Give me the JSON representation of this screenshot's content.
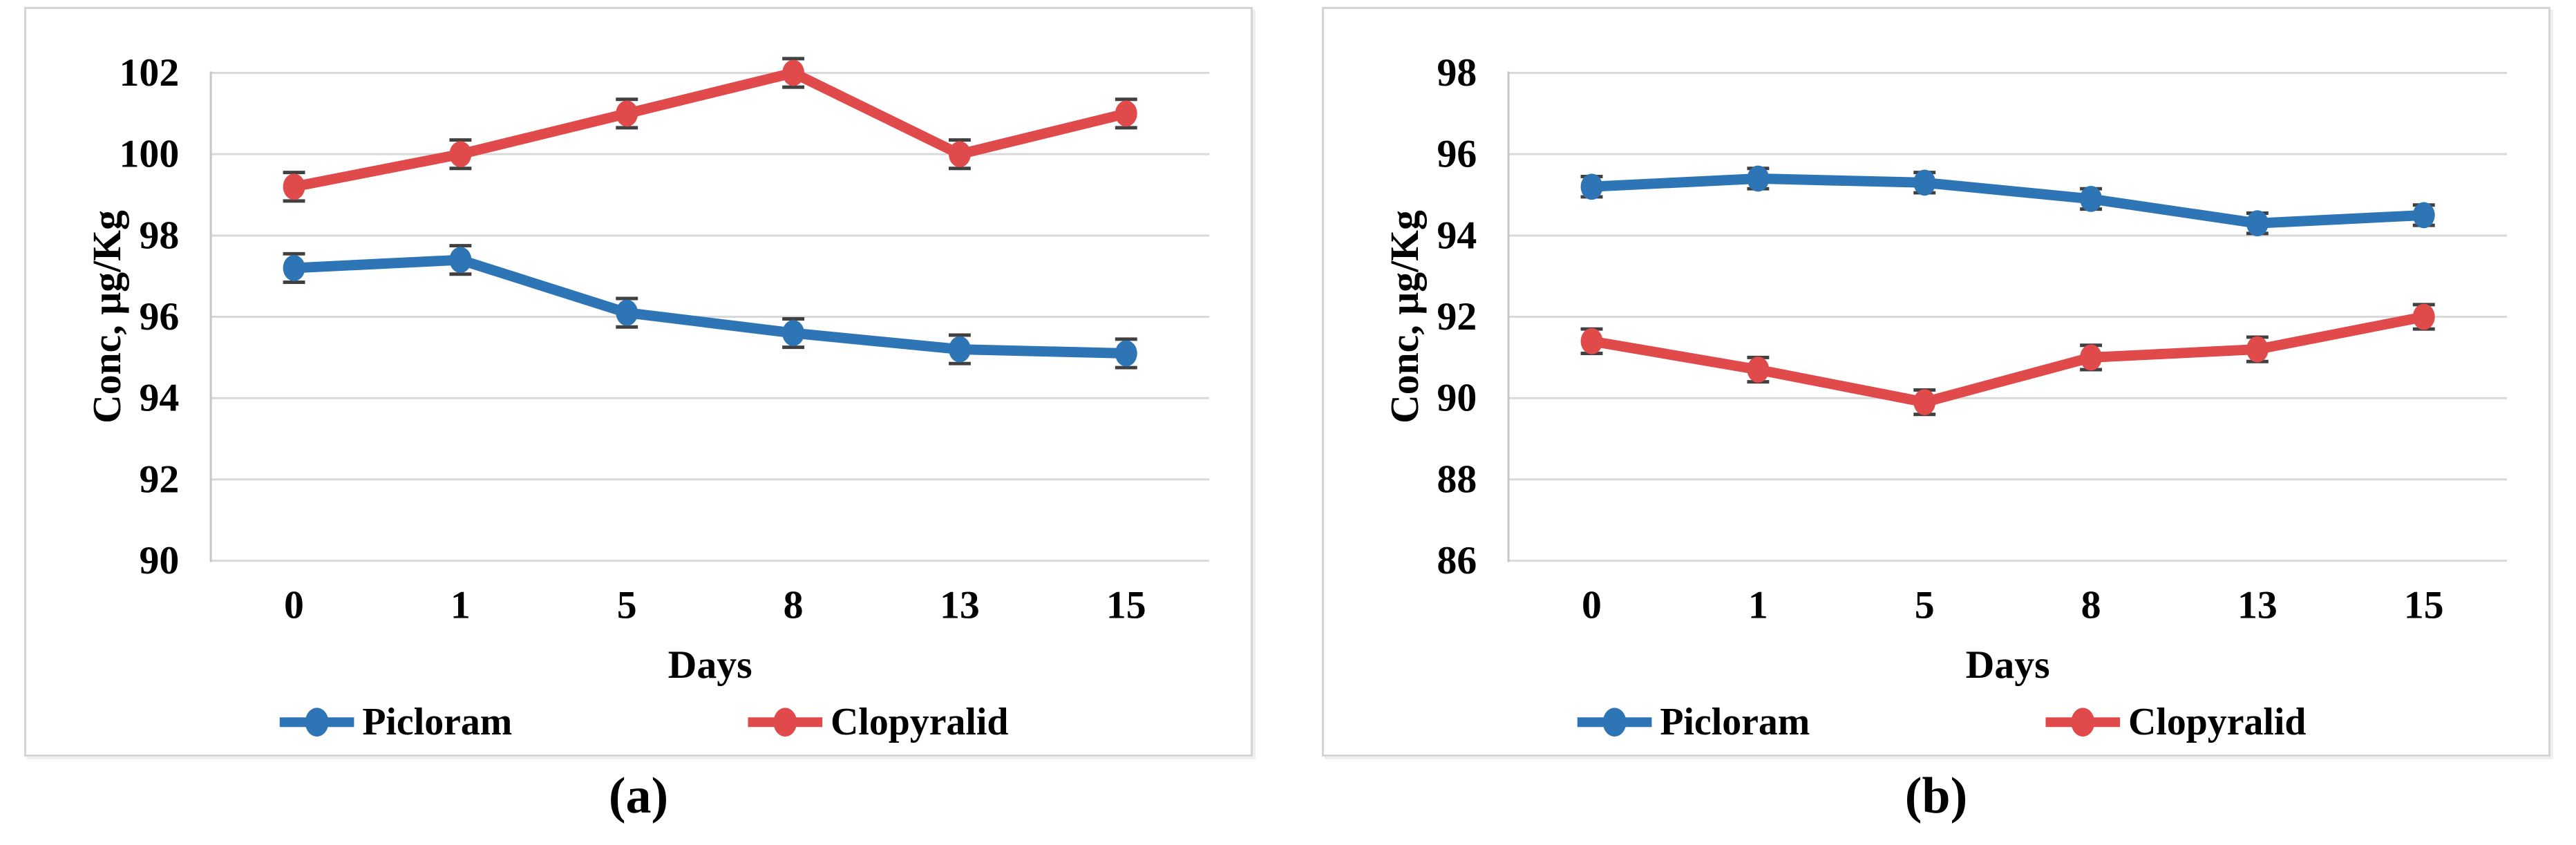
{
  "style": {
    "background": "#ffffff",
    "panel_border": "#d5d5d5",
    "gridline": "#d9d9d9",
    "axis_line": "#c6c6c6",
    "error_bar": "#404040",
    "text": "#000000",
    "picloram_color": "#2E75B6",
    "clopyralid_color": "#E04A4A"
  },
  "chart_data": [
    {
      "id": "a",
      "type": "line",
      "caption": "(a)",
      "title": "",
      "xlabel": "Days",
      "ylabel": "Conc, µg/Kg",
      "categories": [
        "0",
        "1",
        "5",
        "8",
        "13",
        "15"
      ],
      "ylim": [
        90,
        102
      ],
      "yticks": [
        90,
        92,
        94,
        96,
        98,
        100,
        102
      ],
      "grid": "horizontal",
      "legend_position": "bottom",
      "markers": true,
      "error_bars": true,
      "series": [
        {
          "name": "Picloram",
          "color": "#2E75B6",
          "values": [
            97.2,
            97.4,
            96.1,
            95.6,
            95.2,
            95.1
          ],
          "error": 0.35
        },
        {
          "name": "Clopyralid",
          "color": "#E04A4A",
          "values": [
            99.2,
            100.0,
            101.0,
            102.0,
            100.0,
            101.0
          ],
          "error": 0.35
        }
      ]
    },
    {
      "id": "b",
      "type": "line",
      "caption": "(b)",
      "title": "",
      "xlabel": "Days",
      "ylabel": "Conc, µg/Kg",
      "categories": [
        "0",
        "1",
        "5",
        "8",
        "13",
        "15"
      ],
      "ylim": [
        86,
        98
      ],
      "yticks": [
        86,
        88,
        90,
        92,
        94,
        96,
        98
      ],
      "grid": "horizontal",
      "legend_position": "bottom",
      "markers": true,
      "error_bars": true,
      "series": [
        {
          "name": "Picloram",
          "color": "#2E75B6",
          "values": [
            95.2,
            95.4,
            95.3,
            94.9,
            94.3,
            94.5
          ],
          "error": 0.25
        },
        {
          "name": "Clopyralid",
          "color": "#E04A4A",
          "values": [
            91.4,
            90.7,
            89.9,
            91.0,
            91.2,
            92.0
          ],
          "error": 0.3
        }
      ]
    }
  ]
}
